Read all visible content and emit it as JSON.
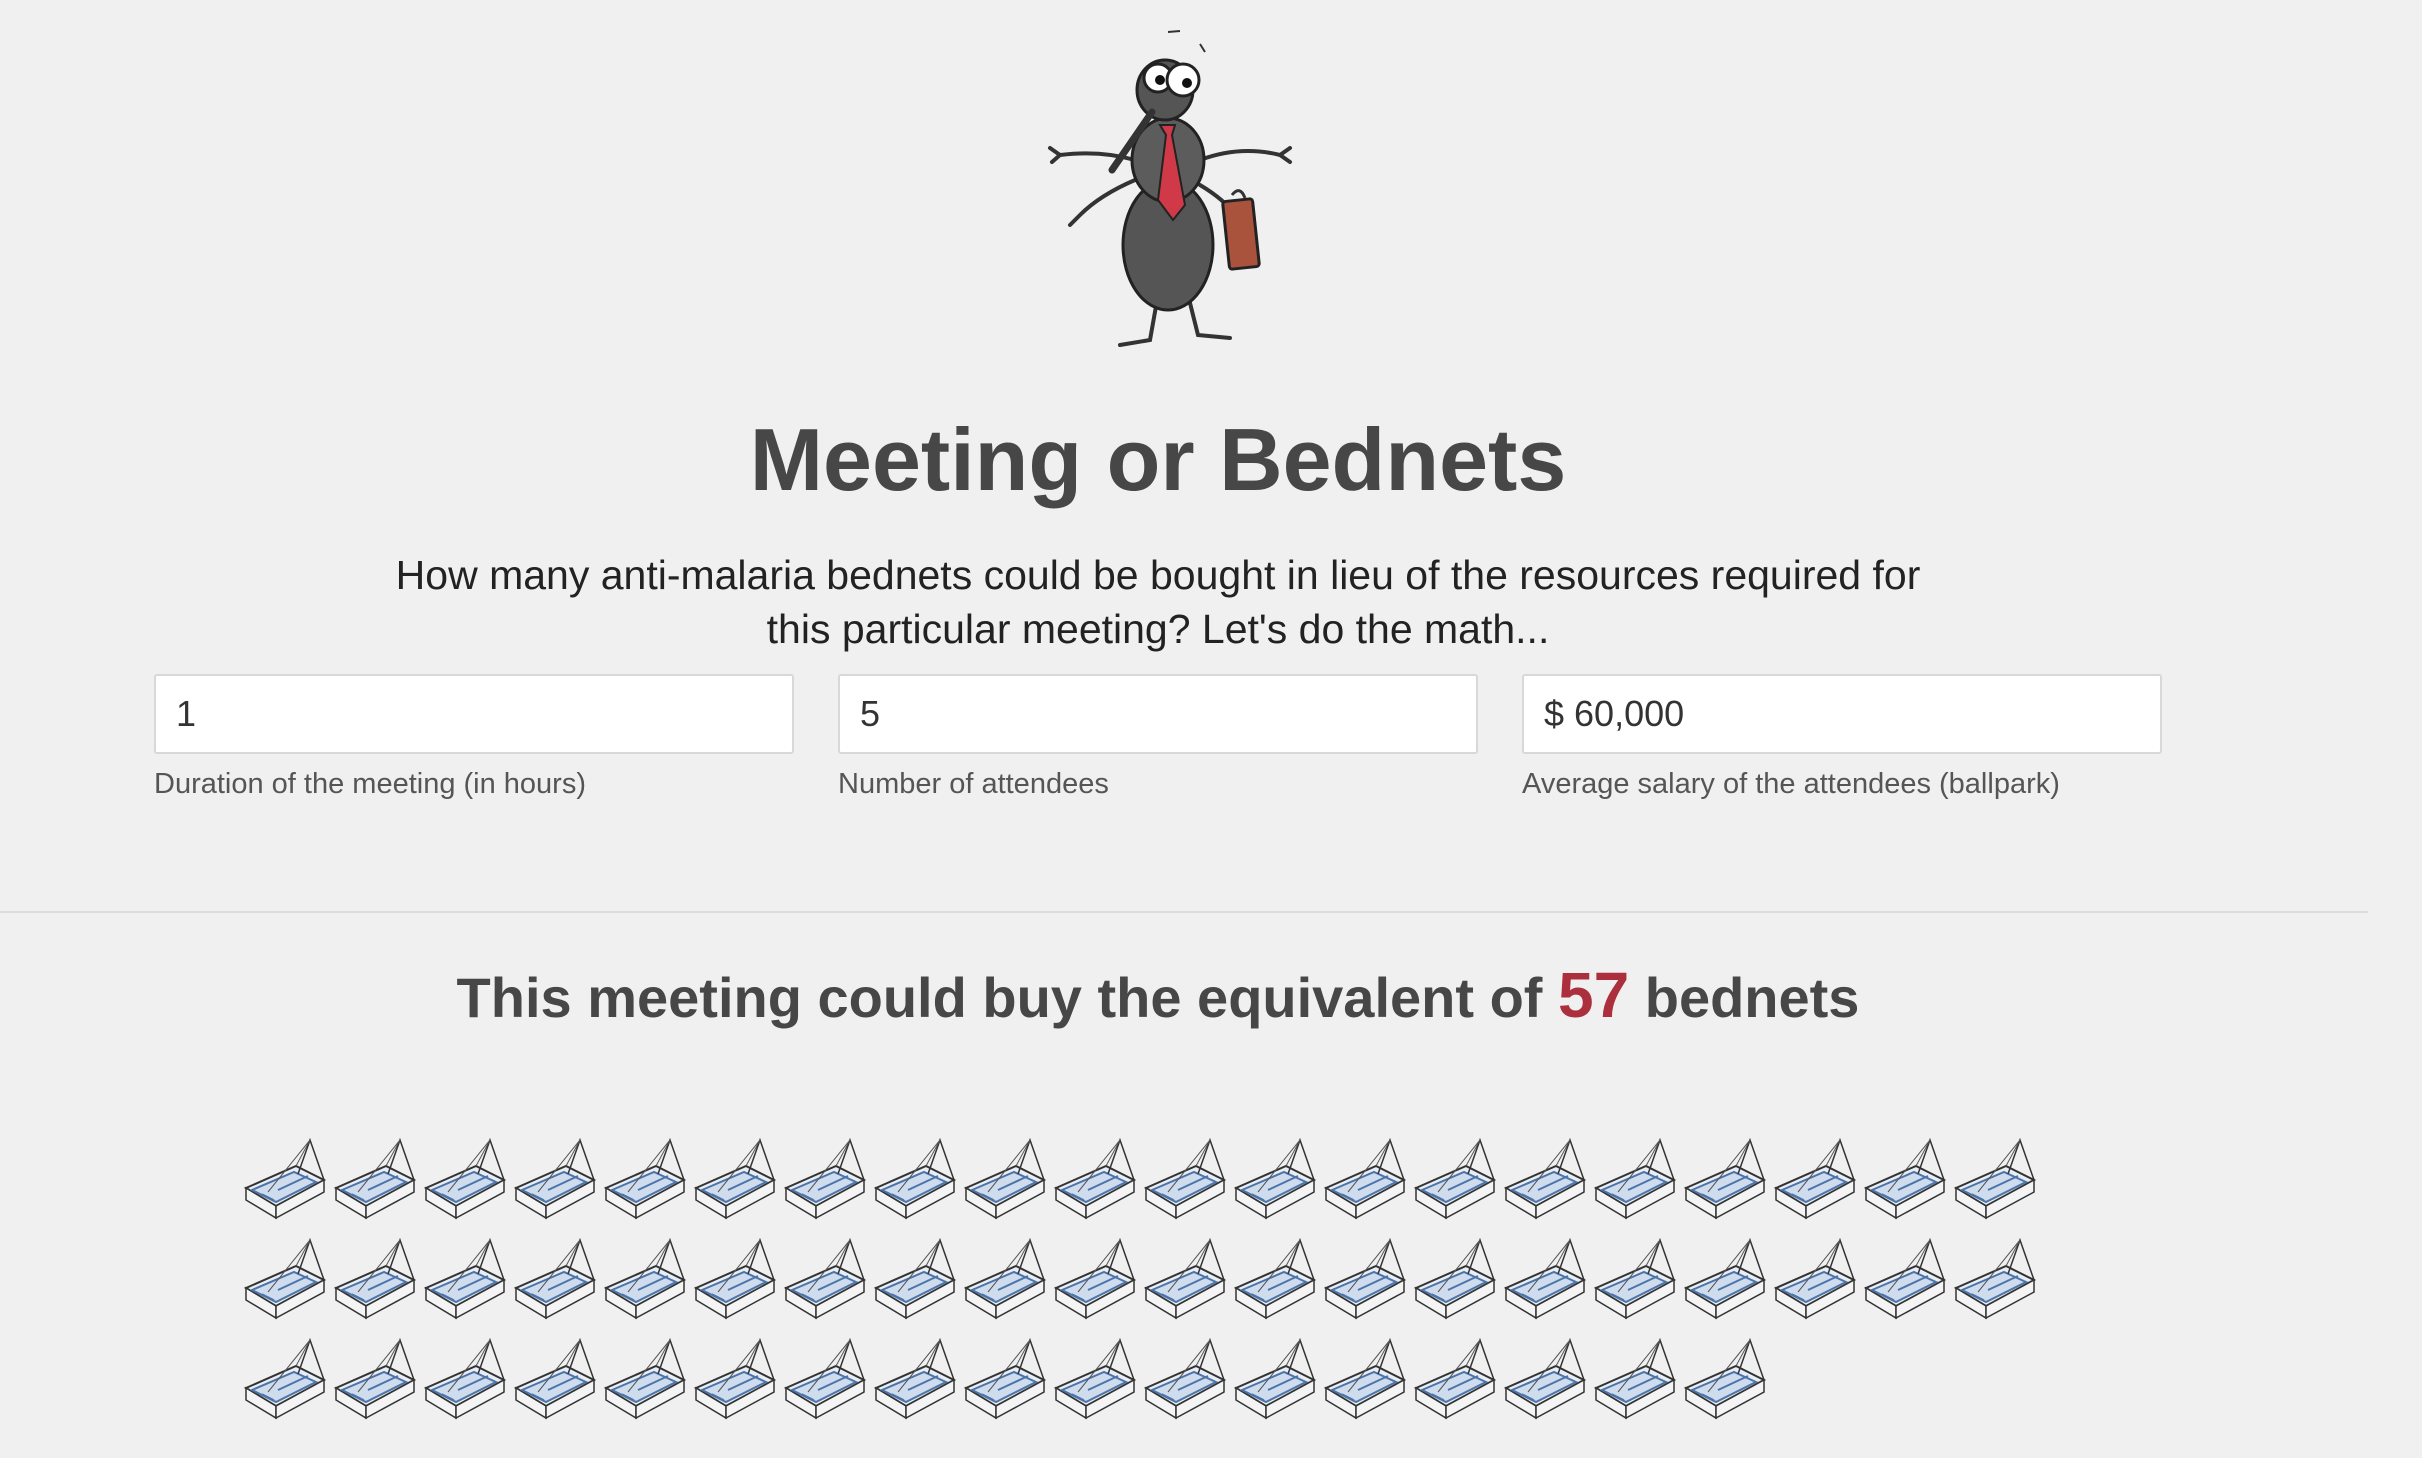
{
  "header": {
    "mascot_icon": "mosquito-businessman-icon",
    "title": "Meeting or Bednets",
    "intro_line1": "How many anti-malaria bednets could be bought in lieu of the resources required for",
    "intro_line2": "this particular meeting? Let's do the math..."
  },
  "form": {
    "duration": {
      "value": "1",
      "label": "Duration of the meeting (in hours)"
    },
    "attendees": {
      "value": "5",
      "label": "Number of attendees"
    },
    "salary": {
      "value": "$ 60,000",
      "label": "Average salary of the attendees (ballpark)"
    }
  },
  "result": {
    "prefix": "This meeting could buy the equivalent of",
    "count": "57",
    "suffix": "bednets",
    "icon": "bednet-icon",
    "accent_color": "#ab2f3c"
  }
}
